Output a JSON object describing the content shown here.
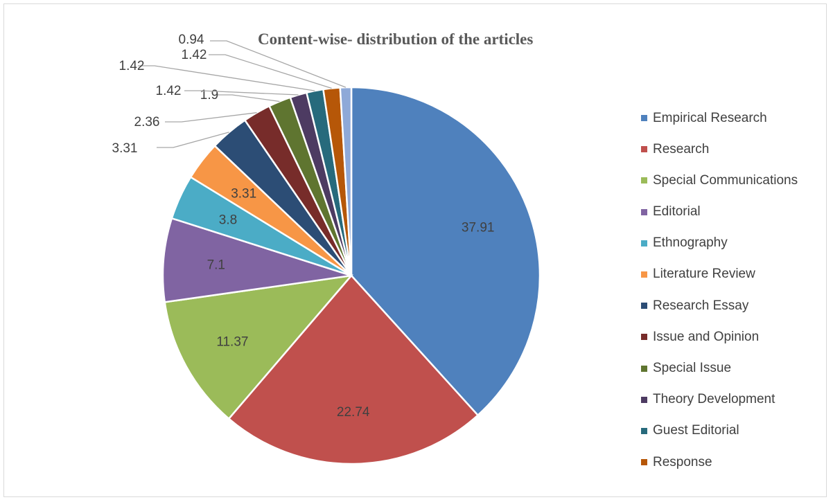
{
  "chart_data": {
    "type": "pie",
    "title": "Content-wise- distribution of the articles",
    "legend_position": "right",
    "slices": [
      {
        "label": "Empirical Research",
        "value": 37.91,
        "value_label": "37.91",
        "color": "#4f81bd"
      },
      {
        "label": "Research",
        "value": 22.74,
        "value_label": "22.74",
        "color": "#c0504d"
      },
      {
        "label": "Special Communications",
        "value": 11.37,
        "value_label": "11.37",
        "color": "#9bbb59"
      },
      {
        "label": "Editorial",
        "value": 7.1,
        "value_label": "7.1",
        "color": "#8064a2"
      },
      {
        "label": "Ethnography",
        "value": 3.8,
        "value_label": "3.8",
        "color": "#4bacc6"
      },
      {
        "label": "Literature Review",
        "value": 3.31,
        "value_label": "3.31",
        "color": "#f79646"
      },
      {
        "label": "Research Essay",
        "value": 3.31,
        "value_label": "3.31",
        "color": "#2c4d75"
      },
      {
        "label": "Issue and Opinion",
        "value": 2.36,
        "value_label": "2.36",
        "color": "#772c2a"
      },
      {
        "label": "Special Issue",
        "value": 1.9,
        "value_label": "1.9",
        "color": "#5f7530"
      },
      {
        "label": "Theory Development",
        "value": 1.42,
        "value_label": "1.42",
        "color": "#4d3b62"
      },
      {
        "label": "Guest Editorial",
        "value": 1.42,
        "value_label": "1.42",
        "color": "#276a7c"
      },
      {
        "label": "Response",
        "value": 1.42,
        "value_label": "1.42",
        "color": "#b65708"
      },
      {
        "label": "",
        "value": 0.94,
        "value_label": "0.94",
        "color": "#8ea9d8"
      }
    ]
  }
}
